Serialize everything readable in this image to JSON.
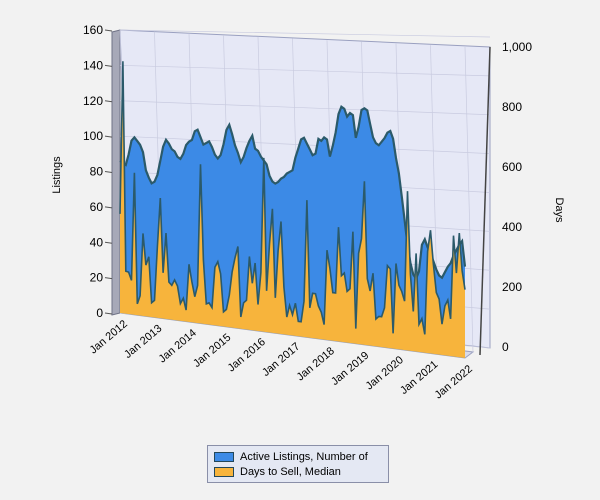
{
  "chart_data": {
    "type": "area",
    "title": "",
    "ylabel": "Listings",
    "y2label": "Days",
    "ylim": [
      0,
      160
    ],
    "y2lim": [
      0,
      1000
    ],
    "yticks": [
      "0",
      "20",
      "40",
      "60",
      "80",
      "100",
      "120",
      "140",
      "160"
    ],
    "y2ticks": [
      "0",
      "200",
      "400",
      "600",
      "800",
      "1,000"
    ],
    "xticks": [
      "Jan 2012",
      "Jan 2013",
      "Jan 2014",
      "Jan 2015",
      "Jan 2016",
      "Jan 2017",
      "Jan 2018",
      "Jan 2019",
      "Jan 2020",
      "Jan 2021",
      "Jan 2022"
    ],
    "x_start": "2012-01",
    "x_end": "2022-01",
    "frequency": "monthly",
    "grid": true,
    "legend_position": "bottom",
    "series": [
      {
        "name": "Active Listings, Number of",
        "axis": "left",
        "color": "#3c8ae6",
        "values": [
          86,
          85,
          84,
          90,
          98,
          100,
          98,
          96,
          92,
          82,
          78,
          75,
          76,
          80,
          88,
          96,
          100,
          98,
          95,
          94,
          91,
          90,
          93,
          98,
          100,
          101,
          106,
          107,
          103,
          99,
          100,
          101,
          98,
          94,
          92,
          94,
          100,
          108,
          111,
          106,
          100,
          96,
          91,
          94,
          99,
          103,
          106,
          99,
          98,
          95,
          93,
          91,
          85,
          82,
          81,
          82,
          84,
          85,
          87,
          88,
          89,
          96,
          101,
          106,
          107,
          104,
          101,
          98,
          99,
          107,
          106,
          108,
          107,
          98,
          104,
          111,
          121,
          125,
          124,
          120,
          122,
          121,
          109,
          115,
          124,
          125,
          124,
          117,
          110,
          107,
          106,
          108,
          110,
          113,
          114,
          110,
          100,
          92,
          80,
          68,
          55,
          46,
          40,
          38,
          42,
          56,
          59,
          55,
          52,
          48,
          44,
          41,
          40,
          43,
          46,
          48,
          52,
          55,
          58,
          60,
          47
        ]
      },
      {
        "name": "Days to Sell, Median",
        "axis": "right",
        "color": "#f7b43c",
        "values": [
          350,
          890,
          150,
          148,
          120,
          500,
          40,
          70,
          290,
          180,
          210,
          50,
          60,
          250,
          420,
          160,
          300,
          130,
          120,
          140,
          120,
          60,
          80,
          40,
          200,
          140,
          90,
          130,
          550,
          220,
          70,
          75,
          60,
          200,
          220,
          180,
          50,
          60,
          110,
          190,
          240,
          280,
          40,
          90,
          100,
          250,
          160,
          230,
          90,
          200,
          590,
          140,
          300,
          420,
          120,
          280,
          380,
          160,
          60,
          100,
          70,
          110,
          50,
          50,
          120,
          460,
          100,
          150,
          150,
          110,
          90,
          50,
          300,
          240,
          160,
          160,
          380,
          220,
          230,
          170,
          180,
          370,
          50,
          300,
          350,
          540,
          220,
          180,
          240,
          90,
          100,
          100,
          130,
          270,
          260,
          50,
          280,
          210,
          190,
          160,
          520,
          250,
          130,
          320,
          90,
          110,
          60,
          330,
          400,
          290,
          200,
          180,
          100,
          160,
          180,
          120,
          390,
          270,
          400,
          280,
          220
        ]
      }
    ],
    "extra_spikes_note": ""
  },
  "legend": {
    "items": [
      {
        "label": "Active Listings, Number of",
        "color": "#3c8ae6"
      },
      {
        "label": "Days to Sell, Median",
        "color": "#f7b43c"
      }
    ]
  }
}
